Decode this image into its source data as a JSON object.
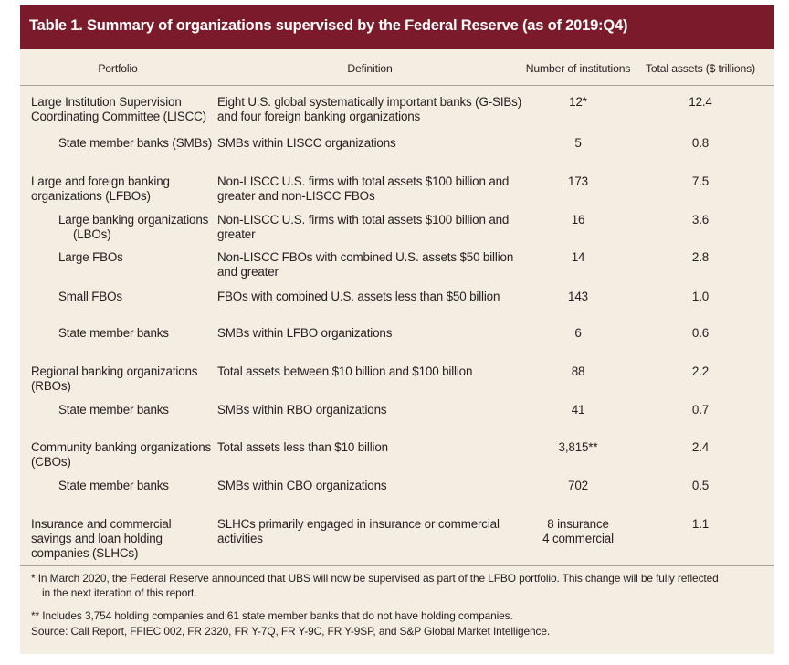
{
  "title": "Table 1. Summary of organizations supervised by the Federal Reserve (as of 2019:Q4)",
  "headers": {
    "portfolio": "Portfolio",
    "definition": "Definition",
    "number": "Number of institutions",
    "assets": "Total assets ($ trillions)"
  },
  "rows": [
    {
      "portfolio": [
        "Large Institution Supervision",
        "Coordinating Committee (LISCC)"
      ],
      "definition": [
        "Eight U.S. global systematically important banks (G-SIBs)",
        "and four foreign banking organizations"
      ],
      "number": [
        "12*"
      ],
      "assets": "12.4"
    },
    {
      "portfolio": [
        "State member banks (SMBs)"
      ],
      "definition": [
        "SMBs within LISCC organizations"
      ],
      "number": [
        "5"
      ],
      "assets": "0.8"
    },
    {
      "portfolio": [
        "Large and foreign banking",
        "organizations (LFBOs)"
      ],
      "definition": [
        "Non-LISCC U.S. firms with total assets $100 billion and",
        "greater and non-LISCC FBOs"
      ],
      "number": [
        "173"
      ],
      "assets": "7.5"
    },
    {
      "portfolio": [
        "Large banking organizations",
        "(LBOs)"
      ],
      "definition": [
        "Non-LISCC U.S. firms with total assets $100 billion and",
        "greater"
      ],
      "number": [
        "16"
      ],
      "assets": "3.6"
    },
    {
      "portfolio": [
        "Large FBOs"
      ],
      "definition": [
        "Non-LISCC FBOs with combined U.S. assets $50 billion",
        "and greater"
      ],
      "number": [
        "14"
      ],
      "assets": "2.8"
    },
    {
      "portfolio": [
        "Small FBOs"
      ],
      "definition": [
        "FBOs with combined U.S. assets less than $50 billion"
      ],
      "number": [
        "143"
      ],
      "assets": "1.0"
    },
    {
      "portfolio": [
        "State member banks"
      ],
      "definition": [
        "SMBs within LFBO organizations"
      ],
      "number": [
        "6"
      ],
      "assets": "0.6"
    },
    {
      "portfolio": [
        "Regional banking organizations",
        "(RBOs)"
      ],
      "definition": [
        "Total assets between $10 billion and $100 billion"
      ],
      "number": [
        "88"
      ],
      "assets": "2.2"
    },
    {
      "portfolio": [
        "State member banks"
      ],
      "definition": [
        "SMBs within RBO organizations"
      ],
      "number": [
        "41"
      ],
      "assets": "0.7"
    },
    {
      "portfolio": [
        "Community banking organizations",
        "(CBOs)"
      ],
      "definition": [
        "Total assets less than $10 billion"
      ],
      "number": [
        "3,815**"
      ],
      "assets": "2.4"
    },
    {
      "portfolio": [
        "State member banks"
      ],
      "definition": [
        "SMBs within CBO organizations"
      ],
      "number": [
        "702"
      ],
      "assets": "0.5"
    },
    {
      "portfolio": [
        "Insurance and commercial",
        "savings and loan holding",
        "companies (SLHCs)"
      ],
      "definition": [
        "SLHCs primarily engaged in insurance or commercial",
        "activities"
      ],
      "number": [
        "8 insurance",
        "4 commercial"
      ],
      "assets": "1.1"
    }
  ],
  "footnotes": {
    "note1_lines": [
      "*  In March 2020, the Federal Reserve announced that UBS will now be supervised as part of the LFBO portfolio. This change will be fully reflected",
      "in the next iteration of this report."
    ],
    "note2": "**  Includes 3,754 holding companies and 61 state member banks that do not have holding companies.",
    "source": "Source: Call Report, FFIEC 002, FR 2320, FR Y-7Q, FR Y-9C, FR Y-9SP, and S&P Global Market Intelligence."
  }
}
